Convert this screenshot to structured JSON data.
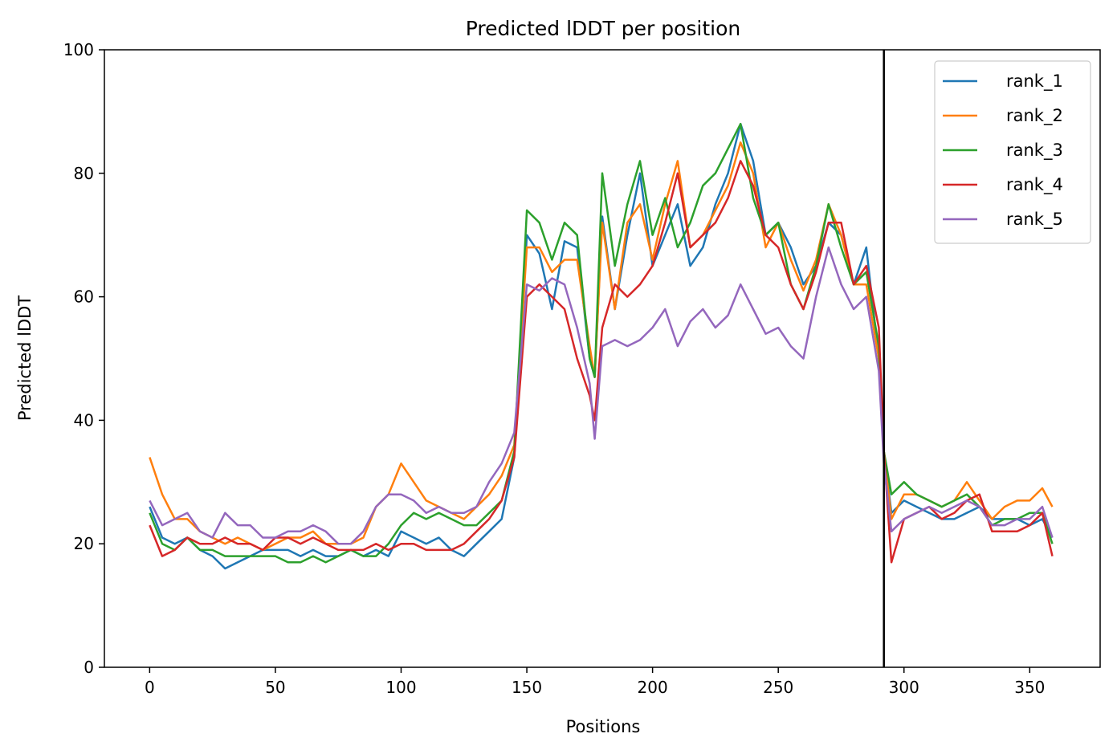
{
  "chart_data": {
    "type": "line",
    "title": "Predicted lDDT per position",
    "xlabel": "Positions",
    "ylabel": "Predicted lDDT",
    "xlim": [
      -18,
      378
    ],
    "ylim": [
      0,
      100
    ],
    "x_ticks": [
      0,
      50,
      100,
      150,
      200,
      250,
      300,
      350
    ],
    "y_ticks": [
      0,
      20,
      40,
      60,
      80,
      100
    ],
    "grid": false,
    "legend_position": "top-right",
    "vertical_line_x": 292,
    "vertical_line_color": "#000000",
    "x": [
      0,
      5,
      10,
      15,
      20,
      25,
      30,
      35,
      40,
      45,
      50,
      55,
      60,
      65,
      70,
      75,
      80,
      85,
      90,
      95,
      100,
      105,
      110,
      115,
      120,
      125,
      130,
      135,
      140,
      145,
      150,
      155,
      160,
      165,
      170,
      175,
      177,
      180,
      185,
      190,
      195,
      200,
      205,
      210,
      215,
      220,
      225,
      230,
      235,
      240,
      245,
      250,
      255,
      260,
      265,
      270,
      275,
      280,
      285,
      290,
      292,
      295,
      300,
      305,
      310,
      315,
      320,
      325,
      330,
      335,
      340,
      345,
      350,
      355,
      359
    ],
    "series": [
      {
        "name": "rank_1",
        "color": "#1f77b4",
        "values": [
          26,
          21,
          20,
          21,
          19,
          18,
          16,
          17,
          18,
          19,
          19,
          19,
          18,
          19,
          18,
          18,
          19,
          18,
          19,
          18,
          22,
          21,
          20,
          21,
          19,
          18,
          20,
          22,
          24,
          34,
          70,
          67,
          58,
          69,
          68,
          50,
          47,
          73,
          58,
          70,
          80,
          65,
          70,
          75,
          65,
          68,
          75,
          80,
          88,
          82,
          70,
          72,
          68,
          62,
          65,
          72,
          70,
          62,
          68,
          50,
          35,
          25,
          27,
          26,
          25,
          24,
          24,
          25,
          26,
          24,
          24,
          24,
          23,
          24,
          21
        ]
      },
      {
        "name": "rank_2",
        "color": "#ff7f0e",
        "values": [
          34,
          28,
          24,
          24,
          22,
          21,
          20,
          21,
          20,
          19,
          20,
          21,
          21,
          22,
          20,
          20,
          20,
          21,
          26,
          28,
          33,
          30,
          27,
          26,
          25,
          24,
          26,
          28,
          31,
          36,
          68,
          68,
          64,
          66,
          66,
          52,
          47,
          72,
          58,
          72,
          75,
          66,
          75,
          82,
          68,
          70,
          74,
          78,
          85,
          80,
          68,
          72,
          66,
          61,
          66,
          75,
          70,
          62,
          62,
          50,
          35,
          24,
          28,
          28,
          27,
          26,
          27,
          30,
          27,
          24,
          26,
          27,
          27,
          29,
          26
        ]
      },
      {
        "name": "rank_3",
        "color": "#2ca02c",
        "values": [
          25,
          20,
          19,
          21,
          19,
          19,
          18,
          18,
          18,
          18,
          18,
          17,
          17,
          18,
          17,
          18,
          19,
          18,
          18,
          20,
          23,
          25,
          24,
          25,
          24,
          23,
          23,
          25,
          27,
          35,
          74,
          72,
          66,
          72,
          70,
          50,
          47,
          80,
          65,
          75,
          82,
          70,
          76,
          68,
          72,
          78,
          80,
          84,
          88,
          76,
          70,
          72,
          62,
          58,
          65,
          75,
          68,
          62,
          64,
          52,
          35,
          28,
          30,
          28,
          27,
          26,
          27,
          28,
          26,
          23,
          24,
          24,
          25,
          25,
          20
        ]
      },
      {
        "name": "rank_4",
        "color": "#d62728",
        "values": [
          23,
          18,
          19,
          21,
          20,
          20,
          21,
          20,
          20,
          19,
          21,
          21,
          20,
          21,
          20,
          19,
          19,
          19,
          20,
          19,
          20,
          20,
          19,
          19,
          19,
          20,
          22,
          24,
          27,
          34,
          60,
          62,
          60,
          58,
          50,
          44,
          40,
          55,
          62,
          60,
          62,
          65,
          72,
          80,
          68,
          70,
          72,
          76,
          82,
          78,
          70,
          68,
          62,
          58,
          64,
          72,
          72,
          62,
          65,
          55,
          35,
          17,
          24,
          25,
          26,
          24,
          25,
          27,
          28,
          22,
          22,
          22,
          23,
          25,
          18
        ]
      },
      {
        "name": "rank_5",
        "color": "#9467bd",
        "values": [
          27,
          23,
          24,
          25,
          22,
          21,
          25,
          23,
          23,
          21,
          21,
          22,
          22,
          23,
          22,
          20,
          20,
          22,
          26,
          28,
          28,
          27,
          25,
          26,
          25,
          25,
          26,
          30,
          33,
          38,
          62,
          61,
          63,
          62,
          55,
          46,
          37,
          52,
          53,
          52,
          53,
          55,
          58,
          52,
          56,
          58,
          55,
          57,
          62,
          58,
          54,
          55,
          52,
          50,
          60,
          68,
          62,
          58,
          60,
          48,
          33,
          22,
          24,
          25,
          26,
          25,
          26,
          27,
          26,
          23,
          23,
          24,
          24,
          26,
          21
        ]
      }
    ]
  }
}
